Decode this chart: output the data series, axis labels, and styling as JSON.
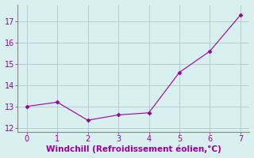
{
  "x": [
    0,
    1,
    2,
    3,
    4,
    5,
    6,
    7
  ],
  "y": [
    13.0,
    13.2,
    12.35,
    12.6,
    12.7,
    14.6,
    15.6,
    17.3
  ],
  "line_color": "#990099",
  "marker": "D",
  "marker_size": 2.5,
  "background_color": "#d8f0f0",
  "grid_color": "#b0c8c8",
  "xlabel": "Windchill (Refroidissement éolien,°C)",
  "xlabel_color": "#990099",
  "xlabel_fontsize": 7.5,
  "tick_color": "#990099",
  "tick_fontsize": 7,
  "xlim": [
    -0.3,
    7.3
  ],
  "ylim": [
    11.8,
    17.8
  ],
  "yticks": [
    12,
    13,
    14,
    15,
    16,
    17
  ],
  "xticks": [
    0,
    1,
    2,
    3,
    4,
    5,
    6,
    7
  ],
  "spine_color": "#888888",
  "linewidth": 0.8
}
